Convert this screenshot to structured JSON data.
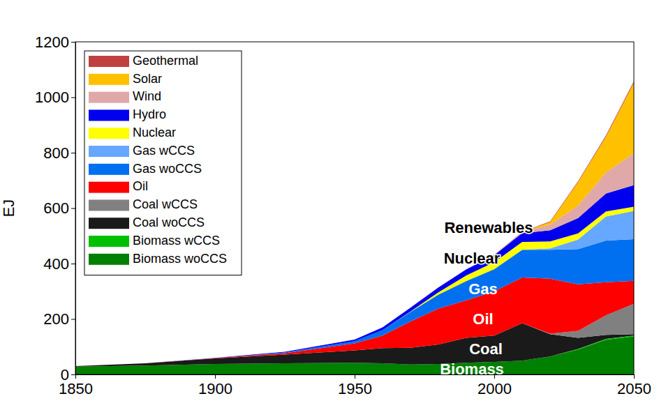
{
  "chart_data": {
    "type": "area",
    "stacked": true,
    "y_label": "EJ",
    "legend": "upper left",
    "grid": false,
    "x": [
      1850,
      1875,
      1900,
      1925,
      1950,
      1960,
      1970,
      1980,
      1990,
      2000,
      2010,
      2020,
      2030,
      2040,
      2050
    ],
    "xlim": [
      1850,
      2050
    ],
    "xticks": [
      1850,
      1900,
      1950,
      2000,
      2050
    ],
    "ylim": [
      0,
      1200
    ],
    "yticks": [
      0,
      200,
      400,
      600,
      800,
      1000,
      1200
    ],
    "series": [
      {
        "name": "Biomass woCCS",
        "color": "#008000",
        "values": [
          28,
          32,
          38,
          40,
          42,
          40,
          36,
          38,
          42,
          45,
          50,
          65,
          90,
          125,
          137
        ]
      },
      {
        "name": "Biomass wCCS",
        "color": "#00c000",
        "values": [
          0,
          0,
          0,
          0,
          0,
          0,
          0,
          0,
          0,
          0,
          0,
          0,
          2,
          3,
          3
        ]
      },
      {
        "name": "Coal woCCS",
        "color": "#1a1a1a",
        "values": [
          2,
          8,
          20,
          32,
          45,
          55,
          60,
          70,
          90,
          95,
          135,
          80,
          40,
          15,
          5
        ]
      },
      {
        "name": "Coal wCCS",
        "color": "#808080",
        "values": [
          0,
          0,
          0,
          0,
          0,
          0,
          0,
          0,
          0,
          0,
          0,
          2,
          25,
          70,
          110
        ]
      },
      {
        "name": "Oil",
        "color": "#ff0000",
        "values": [
          0,
          0,
          1,
          5,
          25,
          45,
          95,
          130,
          135,
          160,
          165,
          198,
          168,
          120,
          83
        ]
      },
      {
        "name": "Gas woCCS",
        "color": "#0070f0",
        "values": [
          0,
          0,
          0,
          2,
          8,
          20,
          35,
          50,
          70,
          80,
          100,
          105,
          127,
          150,
          150
        ]
      },
      {
        "name": "Gas wCCS",
        "color": "#66a8ff",
        "values": [
          0,
          0,
          0,
          0,
          0,
          0,
          0,
          0,
          0,
          0,
          0,
          5,
          35,
          87,
          102
        ]
      },
      {
        "name": "Nuclear",
        "color": "#ffff00",
        "values": [
          0,
          0,
          0,
          0,
          0,
          0,
          1,
          8,
          20,
          25,
          28,
          25,
          22,
          18,
          15
        ]
      },
      {
        "name": "Hydro",
        "color": "#0000ee",
        "values": [
          0,
          0,
          1,
          3,
          6,
          10,
          14,
          18,
          22,
          25,
          32,
          40,
          55,
          65,
          78
        ]
      },
      {
        "name": "Wind",
        "color": "#e0a8a8",
        "values": [
          0,
          0,
          0,
          0,
          0,
          0,
          0,
          0,
          0,
          0.5,
          3,
          20,
          45,
          75,
          115
        ]
      },
      {
        "name": "Solar",
        "color": "#ffc000",
        "values": [
          0,
          0,
          0,
          0,
          0,
          0,
          0,
          0,
          0,
          0,
          0.5,
          10,
          85,
          130,
          255
        ]
      },
      {
        "name": "Geothermal",
        "color": "#c04040",
        "values": [
          0,
          0,
          0,
          0,
          0,
          0,
          0,
          0,
          0,
          1,
          1,
          2,
          3,
          4,
          5
        ]
      }
    ],
    "annotations": [
      {
        "text": "Renewables",
        "x": 1998,
        "y": 526,
        "color": "#000000"
      },
      {
        "text": "Nuclear",
        "x": 1992,
        "y": 415,
        "color": "#000000"
      },
      {
        "text": "Gas",
        "x": 1996,
        "y": 305,
        "color": "#ffffff"
      },
      {
        "text": "Oil",
        "x": 1996,
        "y": 197,
        "color": "#ffffff"
      },
      {
        "text": "Coal",
        "x": 1997,
        "y": 88,
        "color": "#ffffff"
      },
      {
        "text": "Biomass",
        "x": 1992,
        "y": 15,
        "color": "#ffffff"
      }
    ]
  }
}
